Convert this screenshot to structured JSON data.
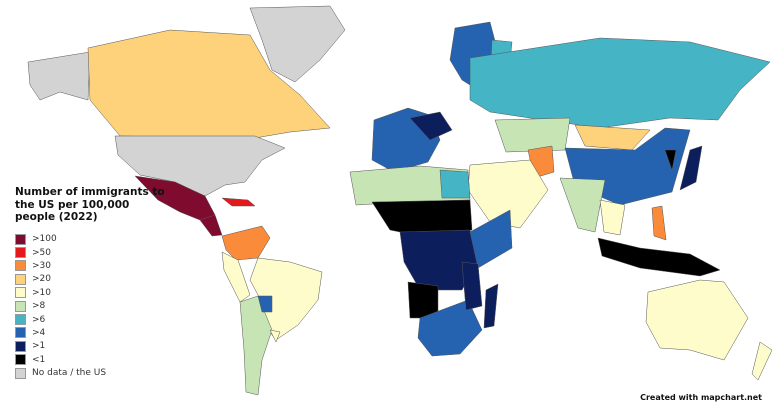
{
  "legend": {
    "title": "Number of immigrants to the US per 100,000 people (2022)",
    "items": [
      {
        "label": ">100",
        "color": "#7f0b2e"
      },
      {
        "label": ">50",
        "color": "#e31a1c"
      },
      {
        "label": ">30",
        "color": "#f98b3a"
      },
      {
        "label": ">20",
        "color": "#fdd27a"
      },
      {
        "label": ">10",
        "color": "#fffccc"
      },
      {
        "label": ">8",
        "color": "#c7e5b4"
      },
      {
        "label": ">6",
        "color": "#45b5c6"
      },
      {
        "label": ">4",
        "color": "#2563b0"
      },
      {
        "label": ">1",
        "color": "#0c1e5c"
      },
      {
        "label": "<1",
        "color": "#000000"
      },
      {
        "label": "No data / the US",
        "color": "#d3d3d3"
      }
    ]
  },
  "credit": "Created with mapchart.net"
}
